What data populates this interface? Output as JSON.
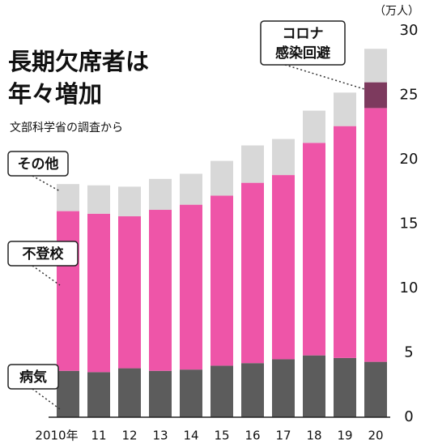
{
  "chart_data": {
    "type": "stacked_bar",
    "title": [
      "長期欠席者は",
      "年々増加"
    ],
    "subtitle": "文部科学省の調査から",
    "y_unit": "（万人）",
    "categories": [
      "2010年",
      "11",
      "12",
      "13",
      "14",
      "15",
      "16",
      "17",
      "18",
      "19",
      "20"
    ],
    "series": [
      {
        "name": "病気",
        "color": "#5c5c5c",
        "values": [
          3.6,
          3.5,
          3.8,
          3.6,
          3.7,
          4.0,
          4.2,
          4.5,
          4.8,
          4.6,
          4.3
        ]
      },
      {
        "name": "不登校",
        "color": "#ee55a8",
        "values": [
          12.4,
          12.3,
          11.8,
          12.5,
          12.8,
          13.2,
          14.0,
          14.3,
          16.5,
          18.0,
          19.7
        ]
      },
      {
        "name": [
          "コロナ",
          "感染回避"
        ],
        "color": "#7d3a5e",
        "values": [
          null,
          null,
          null,
          null,
          null,
          null,
          null,
          null,
          null,
          null,
          2.0
        ]
      },
      {
        "name": "その他",
        "color": "#d8d8d8",
        "values": [
          2.1,
          2.2,
          2.3,
          2.4,
          2.4,
          2.7,
          2.9,
          2.8,
          2.5,
          2.6,
          2.6
        ]
      }
    ],
    "ylim": [
      0,
      30
    ],
    "yticks": [
      0,
      5,
      10,
      15,
      20,
      25,
      30
    ],
    "grid": false
  }
}
